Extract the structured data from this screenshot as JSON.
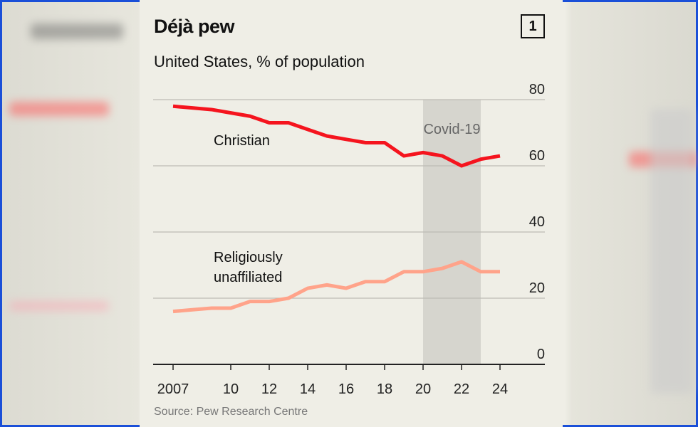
{
  "header": {
    "title": "Déjà pew",
    "subtitle": "United States, % of population",
    "chart_number": "1"
  },
  "footer": {
    "source": "Source: Pew Research Centre"
  },
  "chart_data": {
    "type": "line",
    "title": "Déjà pew",
    "subtitle": "United States, % of population",
    "x": [
      2007,
      2008,
      2009,
      2010,
      2011,
      2012,
      2013,
      2014,
      2015,
      2016,
      2017,
      2018,
      2019,
      2020,
      2021,
      2022,
      2023,
      2024
    ],
    "x_tick_values": [
      2007,
      2010,
      2012,
      2014,
      2016,
      2018,
      2020,
      2022,
      2024
    ],
    "x_tick_labels": [
      "2007",
      "10",
      "12",
      "14",
      "16",
      "18",
      "20",
      "22",
      "24"
    ],
    "ylim": [
      0,
      80
    ],
    "y_ticks": [
      0,
      20,
      40,
      60,
      80
    ],
    "y_axis_side": "right",
    "grid": true,
    "series": [
      {
        "name": "Christian",
        "color": "#f5141e",
        "values": [
          78,
          77.5,
          77,
          76,
          75,
          73,
          73,
          71,
          69,
          68,
          67,
          67,
          63,
          64,
          63,
          60,
          62,
          63
        ]
      },
      {
        "name": "Religiously unaffiliated",
        "color": "#ffa38a",
        "values": [
          16,
          16.5,
          17,
          17,
          19,
          19,
          20,
          23,
          24,
          23,
          25,
          25,
          28,
          28,
          29,
          31,
          28,
          28
        ]
      }
    ],
    "annotations": [
      {
        "label": "Covid-19",
        "x_start": 2020,
        "x_end": 2023,
        "color": "#d6d5ce"
      }
    ]
  }
}
